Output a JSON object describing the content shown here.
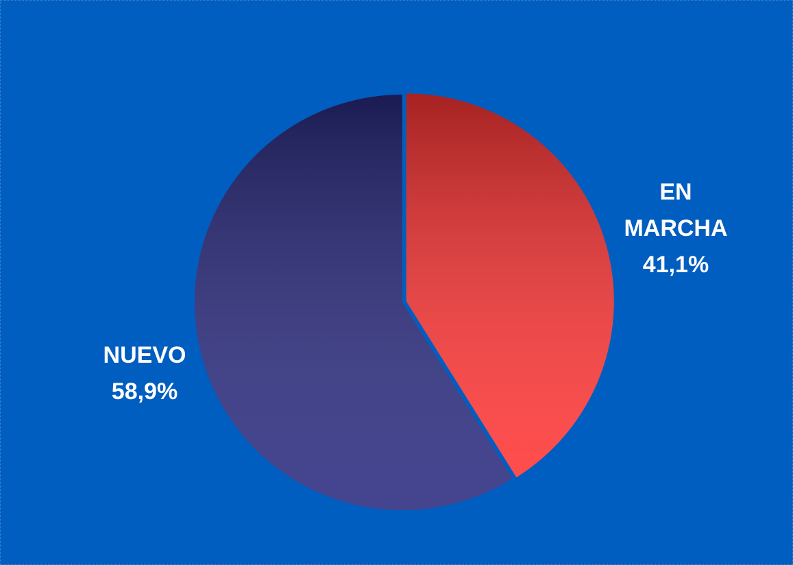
{
  "chart_data": {
    "type": "pie",
    "categories": [
      "EN MARCHA",
      "NUEVO"
    ],
    "values": [
      41.1,
      58.9
    ],
    "value_labels": [
      "41,1%",
      "58,9%"
    ],
    "colors": [
      "#ff3434",
      "#2a2a80"
    ]
  }
}
